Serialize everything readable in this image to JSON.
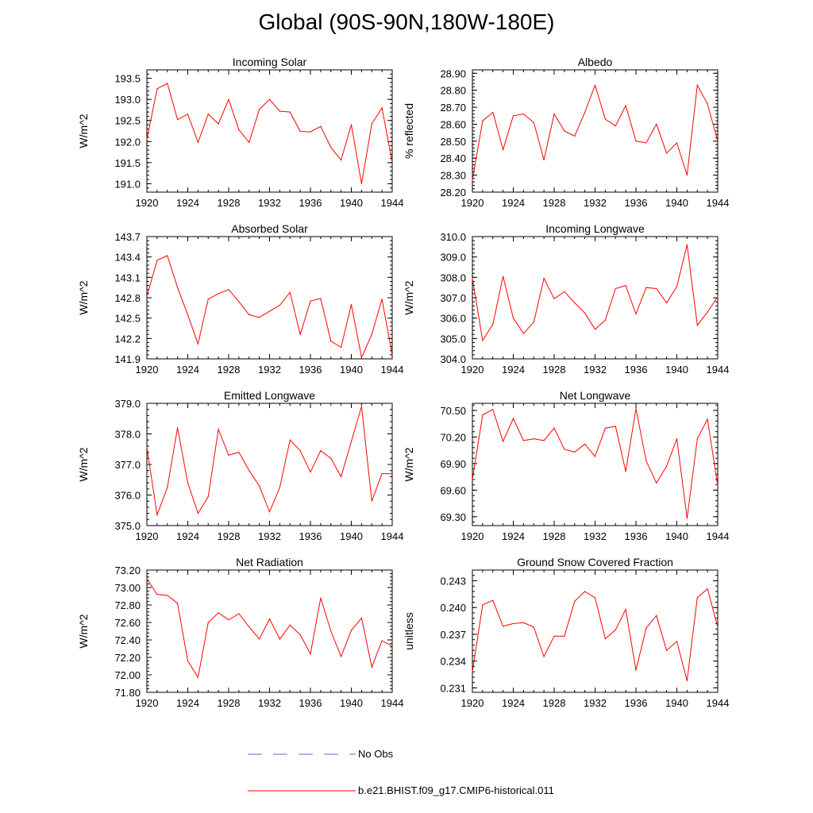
{
  "title": "Global (90S-90N,180W-180E)",
  "legend": {
    "obs_label": "No Obs",
    "model_label": "b.e21.BHIST.f09_g17.CMIP6-historical.011",
    "obs_color": "#5a6fd6",
    "model_color": "#ff0000"
  },
  "chart_data": [
    {
      "type": "line",
      "title": "Incoming Solar",
      "ylabel": "W/m^2",
      "x": [
        1920,
        1921,
        1922,
        1923,
        1924,
        1925,
        1926,
        1927,
        1928,
        1929,
        1930,
        1931,
        1932,
        1933,
        1934,
        1935,
        1936,
        1937,
        1938,
        1939,
        1940,
        1941,
        1942,
        1943,
        1944
      ],
      "values": [
        192.05,
        193.25,
        193.38,
        192.52,
        192.65,
        191.98,
        192.65,
        192.42,
        193.0,
        192.28,
        191.98,
        192.76,
        193.0,
        192.72,
        192.7,
        192.24,
        192.23,
        192.36,
        191.86,
        191.56,
        192.4,
        191.0,
        192.42,
        192.8,
        191.5
      ],
      "ylim": [
        190.8,
        193.7
      ],
      "yticks": [
        "191.0",
        "191.5",
        "192.0",
        "192.5",
        "193.0",
        "193.5"
      ],
      "xticks": [
        "1920",
        "1924",
        "1928",
        "1932",
        "1936",
        "1940",
        "1944"
      ]
    },
    {
      "type": "line",
      "title": "Albedo",
      "ylabel": "% reflected",
      "x": [
        1920,
        1921,
        1922,
        1923,
        1924,
        1925,
        1926,
        1927,
        1928,
        1929,
        1930,
        1931,
        1932,
        1933,
        1934,
        1935,
        1936,
        1937,
        1938,
        1939,
        1940,
        1941,
        1942,
        1943,
        1944
      ],
      "values": [
        28.27,
        28.62,
        28.67,
        28.45,
        28.65,
        28.66,
        28.61,
        28.39,
        28.66,
        28.56,
        28.53,
        28.67,
        28.83,
        28.63,
        28.59,
        28.71,
        28.5,
        28.49,
        28.6,
        28.43,
        28.49,
        28.3,
        28.83,
        28.72,
        28.5
      ],
      "ylim": [
        28.2,
        28.92
      ],
      "yticks": [
        "28.20",
        "28.30",
        "28.40",
        "28.50",
        "28.60",
        "28.70",
        "28.80",
        "28.90"
      ],
      "xticks": [
        "1920",
        "1924",
        "1928",
        "1932",
        "1936",
        "1940",
        "1944"
      ]
    },
    {
      "type": "line",
      "title": "Absorbed Solar",
      "ylabel": "W/m^2",
      "x": [
        1920,
        1921,
        1922,
        1923,
        1924,
        1925,
        1926,
        1927,
        1928,
        1929,
        1930,
        1931,
        1932,
        1933,
        1934,
        1935,
        1936,
        1937,
        1938,
        1939,
        1940,
        1941,
        1942,
        1943,
        1944
      ],
      "values": [
        142.82,
        143.35,
        143.42,
        142.95,
        142.55,
        142.12,
        142.78,
        142.86,
        142.92,
        142.74,
        142.55,
        142.51,
        142.6,
        142.69,
        142.88,
        142.26,
        142.75,
        142.79,
        142.16,
        142.07,
        142.7,
        141.92,
        142.26,
        142.78,
        141.96
      ],
      "ylim": [
        141.9,
        143.7
      ],
      "yticks": [
        "141.9",
        "142.2",
        "142.5",
        "142.8",
        "143.1",
        "143.4",
        "143.7"
      ],
      "xticks": [
        "1920",
        "1924",
        "1928",
        "1932",
        "1936",
        "1940",
        "1944"
      ]
    },
    {
      "type": "line",
      "title": "Incoming Longwave",
      "ylabel": "W/m^2",
      "x": [
        1920,
        1921,
        1922,
        1923,
        1924,
        1925,
        1926,
        1927,
        1928,
        1929,
        1930,
        1931,
        1932,
        1933,
        1934,
        1935,
        1936,
        1937,
        1938,
        1939,
        1940,
        1941,
        1942,
        1943,
        1944
      ],
      "values": [
        307.95,
        304.9,
        305.7,
        308.05,
        306.0,
        305.25,
        305.8,
        307.95,
        306.95,
        307.3,
        306.75,
        306.25,
        305.45,
        305.9,
        307.45,
        307.6,
        306.2,
        307.5,
        307.45,
        306.75,
        307.55,
        309.6,
        305.65,
        306.3,
        307.05
      ],
      "ylim": [
        304.0,
        310.0
      ],
      "yticks": [
        "304.0",
        "305.0",
        "306.0",
        "307.0",
        "308.0",
        "309.0",
        "310.0"
      ],
      "xticks": [
        "1920",
        "1924",
        "1928",
        "1932",
        "1936",
        "1940",
        "1944"
      ]
    },
    {
      "type": "line",
      "title": "Emitted Longwave",
      "ylabel": "W/m^2",
      "x": [
        1920,
        1921,
        1922,
        1923,
        1924,
        1925,
        1926,
        1927,
        1928,
        1929,
        1930,
        1931,
        1932,
        1933,
        1934,
        1935,
        1936,
        1937,
        1938,
        1939,
        1940,
        1941,
        1942,
        1943,
        1944
      ],
      "values": [
        377.55,
        375.35,
        376.25,
        378.2,
        376.4,
        375.4,
        375.95,
        378.15,
        377.3,
        377.4,
        376.8,
        376.3,
        375.45,
        376.25,
        377.8,
        377.45,
        376.75,
        377.45,
        377.2,
        376.6,
        377.75,
        378.9,
        375.8,
        376.7,
        376.7
      ],
      "ylim": [
        375.0,
        379.0
      ],
      "yticks": [
        "375.0",
        "376.0",
        "377.0",
        "378.0",
        "379.0"
      ],
      "xticks": [
        "1920",
        "1924",
        "1928",
        "1932",
        "1936",
        "1940",
        "1944"
      ]
    },
    {
      "type": "line",
      "title": "Net Longwave",
      "ylabel": "W/m^2",
      "x": [
        1920,
        1921,
        1922,
        1923,
        1924,
        1925,
        1926,
        1927,
        1928,
        1929,
        1930,
        1931,
        1932,
        1933,
        1934,
        1935,
        1936,
        1937,
        1938,
        1939,
        1940,
        1941,
        1942,
        1943,
        1944
      ],
      "values": [
        69.72,
        70.45,
        70.51,
        70.15,
        70.41,
        70.16,
        70.18,
        70.16,
        70.3,
        70.06,
        70.03,
        70.12,
        69.98,
        70.3,
        70.32,
        69.81,
        70.52,
        69.93,
        69.68,
        69.87,
        70.18,
        69.28,
        70.18,
        70.4,
        69.65
      ],
      "ylim": [
        69.2,
        70.58
      ],
      "yticks": [
        "69.30",
        "69.60",
        "69.90",
        "70.20",
        "70.50"
      ],
      "xticks": [
        "1920",
        "1924",
        "1928",
        "1932",
        "1936",
        "1940",
        "1944"
      ]
    },
    {
      "type": "line",
      "title": "Net Radiation",
      "ylabel": "W/m^2",
      "x": [
        1920,
        1921,
        1922,
        1923,
        1924,
        1925,
        1926,
        1927,
        1928,
        1929,
        1930,
        1931,
        1932,
        1933,
        1934,
        1935,
        1936,
        1937,
        1938,
        1939,
        1940,
        1941,
        1942,
        1943,
        1944
      ],
      "values": [
        73.1,
        72.92,
        72.91,
        72.82,
        72.16,
        71.97,
        72.6,
        72.71,
        72.63,
        72.7,
        72.55,
        72.41,
        72.64,
        72.41,
        72.57,
        72.46,
        72.24,
        72.88,
        72.5,
        72.21,
        72.51,
        72.65,
        72.09,
        72.39,
        72.33
      ],
      "ylim": [
        71.8,
        73.2
      ],
      "yticks": [
        "71.80",
        "72.00",
        "72.20",
        "72.40",
        "72.60",
        "72.80",
        "73.00",
        "73.20"
      ],
      "xticks": [
        "1920",
        "1924",
        "1928",
        "1932",
        "1936",
        "1940",
        "1944"
      ]
    },
    {
      "type": "line",
      "title": "Ground Snow Covered Fraction",
      "ylabel": "unitless",
      "x": [
        1920,
        1921,
        1922,
        1923,
        1924,
        1925,
        1926,
        1927,
        1928,
        1929,
        1930,
        1931,
        1932,
        1933,
        1934,
        1935,
        1936,
        1937,
        1938,
        1939,
        1940,
        1941,
        1942,
        1943,
        1944
      ],
      "values": [
        0.2328,
        0.2403,
        0.2408,
        0.2379,
        0.2382,
        0.2383,
        0.2378,
        0.2345,
        0.2368,
        0.2368,
        0.2407,
        0.2418,
        0.2411,
        0.2365,
        0.2375,
        0.2398,
        0.233,
        0.2377,
        0.2391,
        0.2352,
        0.2362,
        0.2318,
        0.2411,
        0.2421,
        0.2378
      ],
      "ylim": [
        0.2305,
        0.2442
      ],
      "yticks": [
        "0.231",
        "0.234",
        "0.237",
        "0.240",
        "0.243"
      ],
      "xticks": [
        "1920",
        "1924",
        "1928",
        "1932",
        "1936",
        "1940",
        "1944"
      ]
    }
  ]
}
